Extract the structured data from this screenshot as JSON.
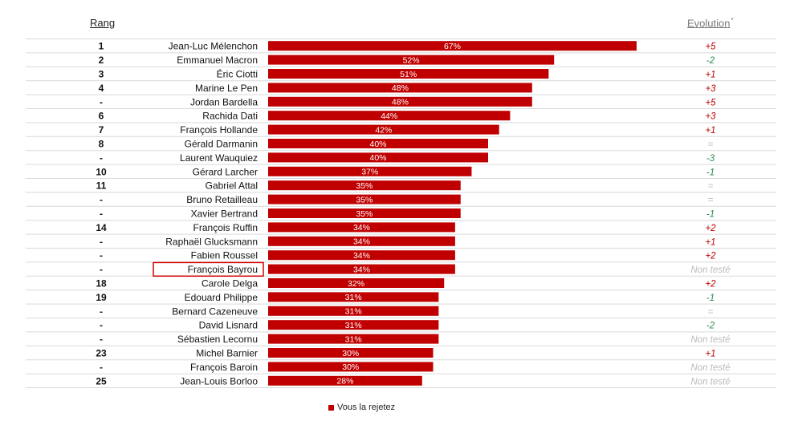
{
  "header": {
    "rank_label": "Rang",
    "evolution_label": "Evolution",
    "evolution_mark": "*"
  },
  "legend": {
    "label": "Vous la rejetez"
  },
  "colors": {
    "bar": "#c00000",
    "up": "#c00000",
    "down": "#2e8b57",
    "neutral": "#bbbbbb"
  },
  "highlighted_name": "François Bayrou",
  "chart_data": {
    "type": "bar",
    "orientation": "horizontal",
    "series": [
      {
        "name": "Vous la rejetez"
      }
    ],
    "xlim": [
      0,
      100
    ],
    "grid": false,
    "legend_position": "bottom-center",
    "rows": [
      {
        "rank": "1",
        "name": "Jean-Luc Mélenchon",
        "value": 67,
        "label": "67%",
        "evolution": "+5"
      },
      {
        "rank": "2",
        "name": "Emmanuel Macron",
        "value": 52,
        "label": "52%",
        "evolution": "-2"
      },
      {
        "rank": "3",
        "name": "Éric Ciotti",
        "value": 51,
        "label": "51%",
        "evolution": "+1"
      },
      {
        "rank": "4",
        "name": "Marine Le Pen",
        "value": 48,
        "label": "48%",
        "evolution": "+3"
      },
      {
        "rank": "-",
        "name": "Jordan Bardella",
        "value": 48,
        "label": "48%",
        "evolution": "+5"
      },
      {
        "rank": "6",
        "name": "Rachida Dati",
        "value": 44,
        "label": "44%",
        "evolution": "+3"
      },
      {
        "rank": "7",
        "name": "François Hollande",
        "value": 42,
        "label": "42%",
        "evolution": "+1"
      },
      {
        "rank": "8",
        "name": "Gérald Darmanin",
        "value": 40,
        "label": "40%",
        "evolution": "="
      },
      {
        "rank": "-",
        "name": "Laurent Wauquiez",
        "value": 40,
        "label": "40%",
        "evolution": "-3"
      },
      {
        "rank": "10",
        "name": "Gérard Larcher",
        "value": 37,
        "label": "37%",
        "evolution": "-1"
      },
      {
        "rank": "11",
        "name": "Gabriel Attal",
        "value": 35,
        "label": "35%",
        "evolution": "="
      },
      {
        "rank": "-",
        "name": "Bruno Retailleau",
        "value": 35,
        "label": "35%",
        "evolution": "="
      },
      {
        "rank": "-",
        "name": "Xavier Bertrand",
        "value": 35,
        "label": "35%",
        "evolution": "-1"
      },
      {
        "rank": "14",
        "name": "François Ruffin",
        "value": 34,
        "label": "34%",
        "evolution": "+2"
      },
      {
        "rank": "-",
        "name": "Raphaël Glucksmann",
        "value": 34,
        "label": "34%",
        "evolution": "+1"
      },
      {
        "rank": "-",
        "name": "Fabien Roussel",
        "value": 34,
        "label": "34%",
        "evolution": "+2"
      },
      {
        "rank": "-",
        "name": "François Bayrou",
        "value": 34,
        "label": "34%",
        "evolution": "Non testé"
      },
      {
        "rank": "18",
        "name": "Carole Delga",
        "value": 32,
        "label": "32%",
        "evolution": "+2"
      },
      {
        "rank": "19",
        "name": "Edouard Philippe",
        "value": 31,
        "label": "31%",
        "evolution": "-1"
      },
      {
        "rank": "-",
        "name": "Bernard Cazeneuve",
        "value": 31,
        "label": "31%",
        "evolution": "="
      },
      {
        "rank": "-",
        "name": "David Lisnard",
        "value": 31,
        "label": "31%",
        "evolution": "-2"
      },
      {
        "rank": "-",
        "name": "Sébastien Lecornu",
        "value": 31,
        "label": "31%",
        "evolution": "Non testé"
      },
      {
        "rank": "23",
        "name": "Michel Barnier",
        "value": 30,
        "label": "30%",
        "evolution": "+1"
      },
      {
        "rank": "-",
        "name": "François Baroin",
        "value": 30,
        "label": "30%",
        "evolution": "Non testé"
      },
      {
        "rank": "25",
        "name": "Jean-Louis Borloo",
        "value": 28,
        "label": "28%",
        "evolution": "Non testé"
      }
    ]
  }
}
